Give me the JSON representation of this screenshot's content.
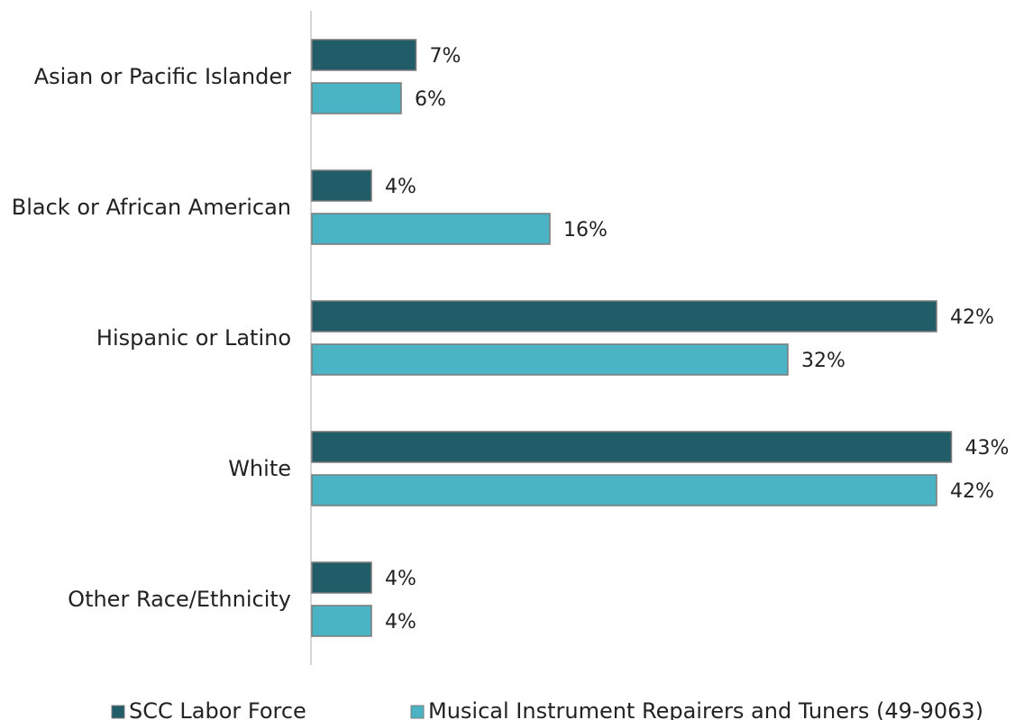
{
  "chart_data": {
    "type": "bar",
    "orientation": "horizontal",
    "categories": [
      "Asian or Pacific Islander",
      "Black or African American",
      "Hispanic or Latino",
      "White",
      "Other Race/Ethnicity"
    ],
    "series": [
      {
        "name": "SCC Labor Force",
        "color": "#215d68",
        "values": [
          7,
          4,
          42,
          43,
          4
        ],
        "labels": [
          "7%",
          "4%",
          "42%",
          "43%",
          "4%"
        ]
      },
      {
        "name": "Musical Instrument Repairers and Tuners (49-9063)",
        "color": "#4ab4c5",
        "values": [
          6,
          16,
          32,
          42,
          4
        ],
        "labels": [
          "6%",
          "16%",
          "32%",
          "42%",
          "4%"
        ]
      }
    ],
    "value_unit": "%",
    "xlim": [
      0,
      43
    ],
    "grid": false,
    "legend_position": "bottom"
  }
}
